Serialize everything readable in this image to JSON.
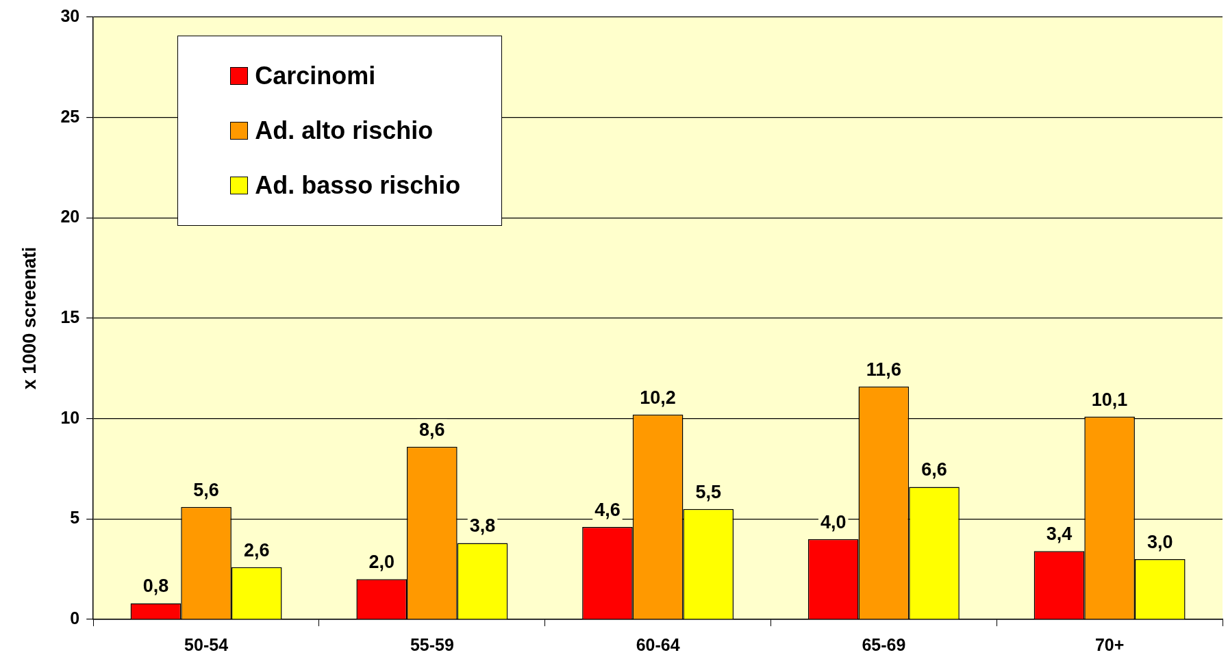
{
  "chart_data": {
    "type": "bar",
    "ylabel": "x 1000 screenati",
    "categories": [
      "50-54",
      "55-59",
      "60-64",
      "65-69",
      "70+"
    ],
    "series": [
      {
        "name": "Carcinomi",
        "color": "#ff0000",
        "values": [
          0.8,
          2.0,
          4.6,
          4.0,
          3.4
        ],
        "value_labels": [
          "0,8",
          "2,0",
          "4,6",
          "4,0",
          "3,4"
        ]
      },
      {
        "name": "Ad. alto rischio",
        "color": "#ff9900",
        "values": [
          5.6,
          8.6,
          10.2,
          11.6,
          10.1
        ],
        "value_labels": [
          "5,6",
          "8,6",
          "10,2",
          "11,6",
          "10,1"
        ]
      },
      {
        "name": "Ad. basso rischio",
        "color": "#ffff00",
        "values": [
          2.6,
          3.8,
          5.5,
          6.6,
          3.0
        ],
        "value_labels": [
          "2,6",
          "3,8",
          "5,5",
          "6,6",
          "3,0"
        ]
      }
    ],
    "ylim": [
      0,
      30
    ],
    "yticks": [
      0,
      5,
      10,
      15,
      20,
      25,
      30
    ],
    "grid": "y",
    "legend": "top left"
  }
}
